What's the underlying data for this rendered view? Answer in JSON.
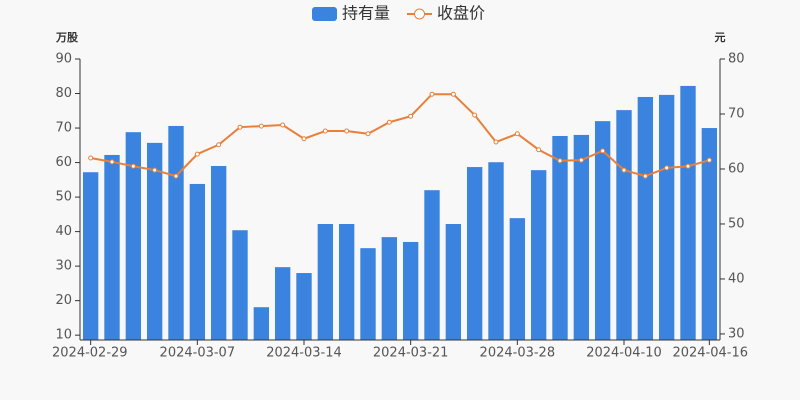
{
  "chart_data": {
    "type": "bar-line",
    "y_axis_label": "万股",
    "y2_axis_label": "元",
    "categories": [
      "2024-02-29",
      null,
      null,
      null,
      null,
      "2024-03-07",
      null,
      null,
      null,
      null,
      "2024-03-14",
      null,
      null,
      null,
      null,
      "2024-03-21",
      null,
      null,
      null,
      null,
      "2024-03-28",
      null,
      null,
      null,
      null,
      "2024-04-10",
      null,
      null,
      null,
      "2024-04-16"
    ],
    "series": [
      {
        "name": "持有量",
        "type": "bar",
        "color": "#3a84e0",
        "values": [
          57.2,
          62.2,
          68.8,
          65.7,
          70.6,
          53.8,
          59.0,
          40.4,
          18.1,
          29.7,
          28.0,
          42.2,
          42.2,
          35.2,
          38.4,
          37.0,
          52.0,
          42.2,
          58.7,
          60.1,
          43.9,
          57.8,
          67.7,
          68.0,
          72.0,
          75.2,
          79.0,
          79.6,
          82.2,
          70.0
        ]
      },
      {
        "name": "收盘价",
        "type": "line",
        "axis": "y2",
        "color": "#e8803a",
        "values": [
          62.0,
          61.3,
          60.5,
          59.8,
          58.7,
          62.7,
          64.4,
          67.6,
          67.8,
          68.0,
          65.5,
          66.9,
          66.9,
          66.4,
          68.5,
          69.6,
          73.6,
          73.6,
          69.8,
          64.9,
          66.4,
          63.5,
          61.5,
          61.6,
          63.3,
          59.8,
          58.7,
          60.2,
          60.5,
          61.6
        ]
      }
    ],
    "ylim": [
      8.6,
      90
    ],
    "yticks": [
      10,
      20,
      30,
      40,
      50,
      60,
      70,
      80,
      90
    ],
    "y2lim": [
      28.9,
      80
    ],
    "y2ticks": [
      30,
      40,
      50,
      60,
      70,
      80
    ],
    "legend": "top"
  }
}
